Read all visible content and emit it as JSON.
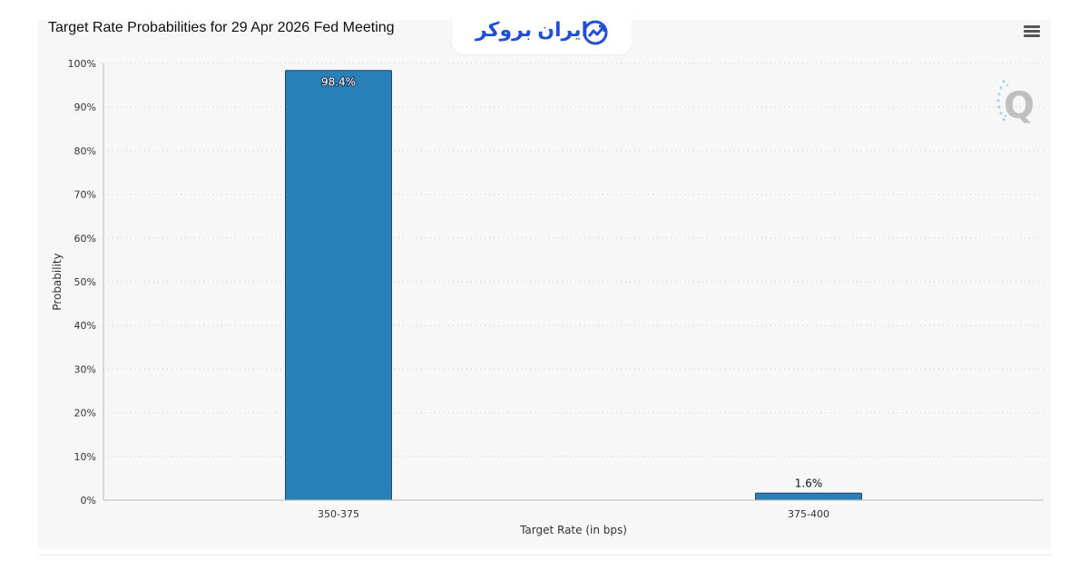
{
  "logo": {
    "text": "ایران بروکر",
    "icon": "trend-arrow-icon"
  },
  "toolbar": {
    "menu_icon": "hamburger-menu-icon"
  },
  "watermark": {
    "icon": "q-watermark-icon"
  },
  "chart_data": {
    "type": "bar",
    "title": "Target Rate Probabilities for 29 Apr 2026 Fed Meeting",
    "categories": [
      "350-375",
      "375-400"
    ],
    "values": [
      98.4,
      1.6
    ],
    "data_labels": [
      "98.4%",
      "1.6%"
    ],
    "xlabel": "Target Rate (in bps)",
    "ylabel": "Probability",
    "ylim": [
      0,
      100
    ],
    "yticks": [
      "0%",
      "10%",
      "20%",
      "30%",
      "40%",
      "50%",
      "60%",
      "70%",
      "80%",
      "90%",
      "100%"
    ],
    "grid": true,
    "bar_color": "#2980b9"
  }
}
